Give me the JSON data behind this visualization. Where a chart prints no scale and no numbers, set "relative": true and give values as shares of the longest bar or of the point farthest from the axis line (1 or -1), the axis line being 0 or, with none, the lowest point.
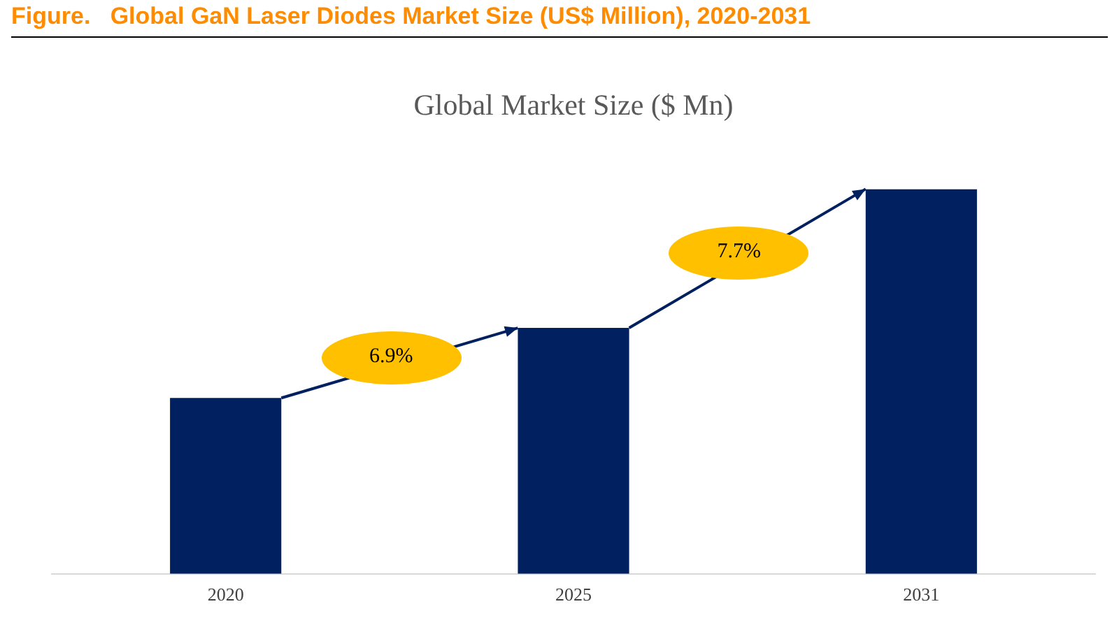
{
  "chart_data": {
    "type": "bar",
    "title": "Figure.   Global GaN Laser Diodes Market Size (US$ Million), 2020-2031",
    "subtitle": "Global Market Size ($ Mn)",
    "categories": [
      "2020",
      "2025",
      "2031"
    ],
    "values": [
      0.457,
      0.639,
      1
    ],
    "color": "#002060",
    "relative": true,
    "annotations": [
      "6.9%",
      "7.7%"
    ],
    "grid": false,
    "legend": false
  }
}
